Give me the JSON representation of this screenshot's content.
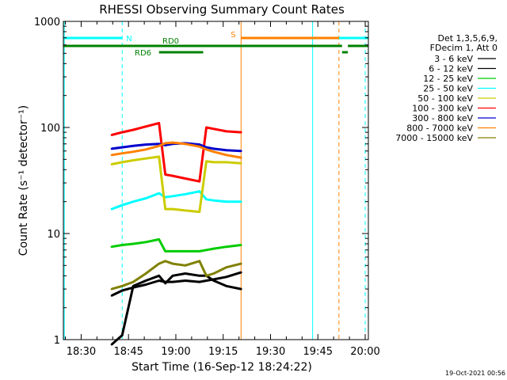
{
  "chart_data": {
    "type": "line",
    "title": "RHESSI Observing Summary Count Rates",
    "xlabel": "Start Time (16-Sep-12 18:24:22)",
    "ylabel": "Count Rate (s⁻¹ detector⁻¹)",
    "yscale": "log",
    "xlim": [
      "18:24:22",
      "20:01:00"
    ],
    "ylim": [
      1,
      1000
    ],
    "x_ticks": [
      "18:30",
      "18:45",
      "19:00",
      "19:15",
      "19:30",
      "19:45",
      "20:00"
    ],
    "y_ticks": [
      "1",
      "10",
      "100",
      "1000"
    ],
    "legend_header": [
      "Det 1,3,5,6,9,",
      "FDecim 1, Att 0"
    ],
    "legend_position": "right",
    "timestamp": "19-Oct-2021 00:56",
    "series": [
      {
        "name": "3 - 6 keV",
        "color": "#000000",
        "x": [
          "18:39:40",
          "18:43:00",
          "18:46:30",
          "18:50:30",
          "18:54:40",
          "18:56:40",
          "18:59:00",
          "19:03:00",
          "19:07:30",
          "19:09:40",
          "19:12:00",
          "19:16:00",
          "19:20:40"
        ],
        "y": [
          0.9,
          1.1,
          3.2,
          3.6,
          4.0,
          3.4,
          4.0,
          4.2,
          4.0,
          4.0,
          3.6,
          3.2,
          3.0
        ]
      },
      {
        "name": "6 - 12 keV",
        "color": "#000000",
        "x": [
          "18:39:40",
          "18:43:00",
          "18:46:30",
          "18:50:30",
          "18:54:40",
          "18:56:40",
          "18:59:00",
          "19:03:00",
          "19:07:30",
          "19:09:40",
          "19:12:00",
          "19:16:00",
          "19:20:40"
        ],
        "y": [
          2.6,
          2.9,
          3.1,
          3.3,
          3.6,
          3.5,
          3.5,
          3.6,
          3.5,
          3.6,
          3.7,
          3.9,
          4.3
        ]
      },
      {
        "name": "12 - 25 keV",
        "color": "#00cc00",
        "x": [
          "18:39:40",
          "18:43:00",
          "18:46:30",
          "18:50:30",
          "18:54:40",
          "18:56:40",
          "18:59:00",
          "19:03:00",
          "19:07:30",
          "19:09:40",
          "19:12:00",
          "19:16:00",
          "19:20:40"
        ],
        "y": [
          7.5,
          7.8,
          8.0,
          8.3,
          8.8,
          6.8,
          6.8,
          6.8,
          6.8,
          7.0,
          7.2,
          7.5,
          7.8
        ]
      },
      {
        "name": "25 - 50 keV",
        "color": "#00ffff",
        "x": [
          "18:39:40",
          "18:43:00",
          "18:46:30",
          "18:50:30",
          "18:54:40",
          "18:56:40",
          "18:59:00",
          "19:03:00",
          "19:07:30",
          "19:09:40",
          "19:12:00",
          "19:16:00",
          "19:20:40"
        ],
        "y": [
          17,
          18.5,
          20,
          21.5,
          24,
          22,
          22.5,
          23.5,
          25,
          21,
          20.5,
          20,
          20
        ]
      },
      {
        "name": "50 - 100 keV",
        "color": "#cccc00",
        "x": [
          "18:39:40",
          "18:43:00",
          "18:46:30",
          "18:50:30",
          "18:54:40",
          "18:56:40",
          "18:59:00",
          "19:03:00",
          "19:07:30",
          "19:09:40",
          "19:12:00",
          "19:16:00",
          "19:20:40"
        ],
        "y": [
          45,
          47,
          49,
          51,
          53,
          17,
          17,
          16.5,
          16,
          48,
          47,
          47,
          46
        ]
      },
      {
        "name": "100 - 300 keV",
        "color": "#ff0000",
        "x": [
          "18:39:40",
          "18:43:00",
          "18:46:30",
          "18:50:30",
          "18:54:40",
          "18:56:40",
          "18:59:00",
          "19:03:00",
          "19:07:30",
          "19:09:40",
          "19:12:00",
          "19:16:00",
          "19:20:40"
        ],
        "y": [
          85,
          90,
          95,
          102,
          110,
          36,
          35,
          33,
          31,
          100,
          97,
          92,
          90
        ]
      },
      {
        "name": "300 - 800 keV",
        "color": "#0000cc",
        "x": [
          "18:39:40",
          "18:43:00",
          "18:46:30",
          "18:50:30",
          "18:54:40",
          "18:56:40",
          "18:59:00",
          "19:03:00",
          "19:07:30",
          "19:09:40",
          "19:12:00",
          "19:16:00",
          "19:20:40"
        ],
        "y": [
          63,
          65,
          67,
          69,
          70,
          68,
          70,
          71,
          69,
          65,
          63,
          61,
          60
        ]
      },
      {
        "name": "800 - 7000 keV",
        "color": "#ff8000",
        "x": [
          "18:39:40",
          "18:43:00",
          "18:46:30",
          "18:50:30",
          "18:54:40",
          "18:56:40",
          "18:59:00",
          "19:03:00",
          "19:07:30",
          "19:09:40",
          "19:12:00",
          "19:16:00",
          "19:20:40"
        ],
        "y": [
          55,
          57,
          59,
          62,
          67,
          71,
          72,
          70,
          66,
          62,
          59,
          55,
          52
        ]
      },
      {
        "name": "7000 - 15000 keV",
        "color": "#808000",
        "x": [
          "18:39:40",
          "18:43:00",
          "18:46:30",
          "18:50:30",
          "18:54:40",
          "18:56:40",
          "18:59:00",
          "19:03:00",
          "19:07:30",
          "19:09:40",
          "19:12:00",
          "19:16:00",
          "19:20:40"
        ],
        "y": [
          3.0,
          3.2,
          3.5,
          4.2,
          5.2,
          5.5,
          5.2,
          5.0,
          5.5,
          4.0,
          4.2,
          4.8,
          5.2
        ]
      }
    ],
    "vertical_markers": [
      {
        "time": "18:24:40",
        "color": "#00ffff",
        "style": "solid"
      },
      {
        "time": "18:43:00",
        "color": "#00ffff",
        "style": "dashed"
      },
      {
        "time": "19:20:40",
        "color": "#ff8000",
        "style": "solid"
      },
      {
        "time": "19:43:20",
        "color": "#00ffff",
        "style": "solid"
      },
      {
        "time": "19:51:40",
        "color": "#ff8000",
        "style": "dashed"
      },
      {
        "time": "20:00:00",
        "color": "#00ffff",
        "style": "dashed"
      }
    ],
    "flag_bars": [
      {
        "label": "N",
        "color": "#00ffff",
        "row": "top",
        "segments": [
          [
            "18:24:22",
            "18:43:00"
          ],
          [
            "19:43:20",
            "20:01:00"
          ]
        ]
      },
      {
        "label": "S",
        "color": "#ff8000",
        "row": "top",
        "segments": [
          [
            "19:20:40",
            "19:51:40"
          ]
        ]
      },
      {
        "label": "RD0",
        "color": "#008000",
        "row": "middle",
        "segments": [
          [
            "18:24:22",
            "19:52:40"
          ],
          [
            "19:54:30",
            "20:01:00"
          ]
        ]
      },
      {
        "label": "RD6",
        "color": "#008000",
        "row": "bottom",
        "segments": [
          [
            "18:54:40",
            "19:08:40"
          ],
          [
            "19:52:40",
            "19:54:30"
          ]
        ]
      }
    ]
  }
}
